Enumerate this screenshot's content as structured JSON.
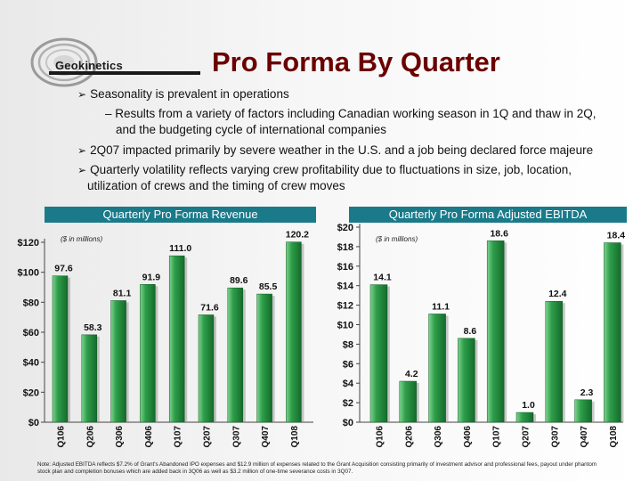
{
  "logo": {
    "text": "Geokinetics"
  },
  "page_title": "Pro Forma By Quarter",
  "bullets": {
    "b1": "Seasonality is prevalent in operations",
    "sub1_line1": "– Results from a variety of factors including Canadian working season in 1Q and thaw in 2Q,",
    "sub1_line2": "and the budgeting cycle of international companies",
    "b2": "2Q07 impacted primarily by severe weather in the U.S. and a job being declared force majeure",
    "b3_line1": "Quarterly volatility reflects varying crew profitability due to fluctuations in size, job, location,",
    "b3_line2": "utilization of crews and the timing of crew moves"
  },
  "colors": {
    "bar_fill": "#1e8b3a",
    "bar_highlight": "#7fd38f",
    "header_bg": "#1a7a8a",
    "title": "#6b0000"
  },
  "chart_data": [
    {
      "type": "bar",
      "title": "Quarterly Pro Forma Revenue",
      "unit_note": "($ in millions)",
      "categories": [
        "Q106",
        "Q206",
        "Q306",
        "Q406",
        "Q107",
        "Q207",
        "Q307",
        "Q407",
        "Q108"
      ],
      "values": [
        97.6,
        58.3,
        81.1,
        91.9,
        111.0,
        71.6,
        89.6,
        85.5,
        120.2
      ],
      "value_labels": [
        "97.6",
        "58.3",
        "81.1",
        "91.9",
        "111.0",
        "71.6",
        "89.6",
        "85.5",
        "120.2"
      ],
      "ylim": [
        0,
        120
      ],
      "yticks": [
        0,
        20,
        40,
        60,
        80,
        100,
        120
      ],
      "ytick_labels": [
        "$0",
        "$20",
        "$40",
        "$60",
        "$80",
        "$100",
        "$120"
      ]
    },
    {
      "type": "bar",
      "title": "Quarterly Pro Forma Adjusted EBITDA",
      "unit_note": "($ in millions)",
      "categories": [
        "Q106",
        "Q206",
        "Q306",
        "Q406",
        "Q107",
        "Q207",
        "Q307",
        "Q407",
        "Q108"
      ],
      "values": [
        14.1,
        4.2,
        11.1,
        8.6,
        18.6,
        1.0,
        12.4,
        2.3,
        18.4
      ],
      "value_labels": [
        "14.1",
        "4.2",
        "11.1",
        "8.6",
        "18.6",
        "1.0",
        "12.4",
        "2.3",
        "18.4"
      ],
      "ylim": [
        0,
        20
      ],
      "yticks": [
        0,
        2,
        4,
        6,
        8,
        10,
        12,
        14,
        16,
        18,
        20
      ],
      "ytick_labels": [
        "$0",
        "$2",
        "$4",
        "$6",
        "$8",
        "$10",
        "$12",
        "$14",
        "$16",
        "$18",
        "$20"
      ]
    }
  ],
  "footnote": "Note: Adjusted EBITDA reflects $7.2% of Grant's Abandoned IPO expenses and $12.9 million of expenses related to the Grant Acquisition consisting primarily of investment advisor and professional fees, payout under phantom stock plan and completion bonuses which are added back in 3Q06 as well as $3.2 million of one-time severance costs in 3Q07."
}
